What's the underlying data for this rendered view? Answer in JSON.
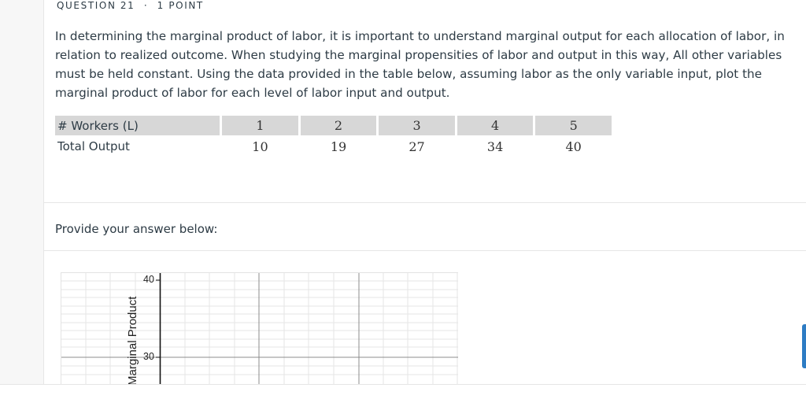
{
  "question": {
    "number_label": "QUESTION 21",
    "separator": "·",
    "points_label": "1 POINT",
    "body": "In determining the marginal product of labor, it is important to understand marginal output for each allocation of labor, in relation to realized outcome. When studying the marginal propensities of labor and output in this way,  All other variables must be held constant. Using the data provided in the table below, assuming labor as the only variable input, plot the marginal product of labor for each level of labor input and output."
  },
  "table": {
    "row_labels": [
      "# Workers (L)",
      "Total Output"
    ],
    "workers": [
      "1",
      "2",
      "3",
      "4",
      "5"
    ],
    "output": [
      "10",
      "19",
      "27",
      "34",
      "40"
    ]
  },
  "answer_prompt": "Provide your answer below:",
  "graph": {
    "y_axis_label": "Marginal Product",
    "y_ticks": [
      "40",
      "30"
    ]
  },
  "colors": {
    "text": "#2d3b45",
    "table_header_bg": "#d7d7d7",
    "accent": "#2d7cc4"
  }
}
